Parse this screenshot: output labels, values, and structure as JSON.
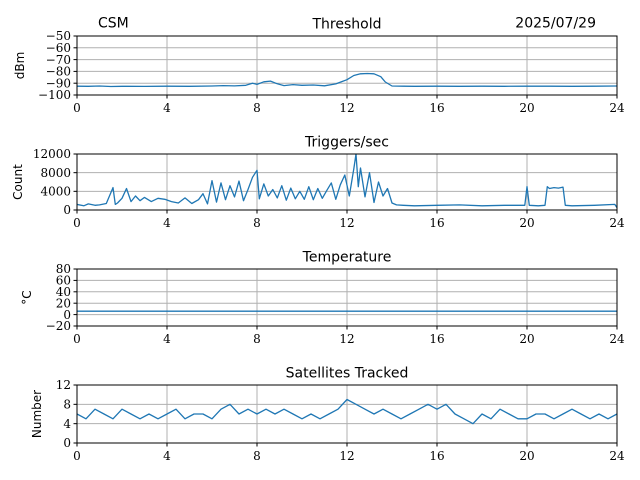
{
  "header": {
    "left": "CSM",
    "date": "2025/07/29"
  },
  "colors": {
    "series": "#1f77b4",
    "grid": "#b0b0b0",
    "axes": "#000000"
  },
  "chart_data": [
    {
      "type": "line",
      "title": "Threshold",
      "ylabel": "dBm",
      "xlim": [
        0,
        24
      ],
      "ylim": [
        -100,
        -50
      ],
      "xticks": [
        0,
        4,
        8,
        12,
        16,
        20,
        24
      ],
      "yticks": [
        -100,
        -90,
        -80,
        -70,
        -60,
        -50
      ],
      "grid": true,
      "series": [
        {
          "x": [
            0,
            0.5,
            1,
            1.5,
            2,
            3,
            4,
            5,
            6,
            6.5,
            7,
            7.5,
            7.8,
            8,
            8.3,
            8.6,
            8.9,
            9.2,
            9.6,
            10,
            10.5,
            11,
            11.5,
            11.8,
            12,
            12.3,
            12.6,
            12.9,
            13.2,
            13.5,
            13.7,
            14,
            14.5,
            15,
            16,
            17,
            18,
            19,
            20,
            21,
            22,
            23,
            24
          ],
          "y": [
            -92.5,
            -92.6,
            -92.4,
            -92.8,
            -92.6,
            -92.7,
            -92.5,
            -92.6,
            -92.4,
            -92.0,
            -92.3,
            -91.8,
            -90.0,
            -91.0,
            -88.8,
            -88.2,
            -90.5,
            -92.0,
            -91.2,
            -91.8,
            -91.5,
            -92.2,
            -90.6,
            -88.5,
            -87.0,
            -83.5,
            -82.0,
            -81.8,
            -82.0,
            -84.5,
            -89.0,
            -92.4,
            -92.5,
            -92.6,
            -92.5,
            -92.6,
            -92.5,
            -92.6,
            -92.5,
            -92.5,
            -92.6,
            -92.5,
            -92.4
          ]
        }
      ]
    },
    {
      "type": "line",
      "title": "Triggers/sec",
      "ylabel": "Count",
      "xlim": [
        0,
        24
      ],
      "ylim": [
        0,
        12000
      ],
      "xticks": [
        0,
        4,
        8,
        12,
        16,
        20,
        24
      ],
      "yticks": [
        0,
        4000,
        8000,
        12000
      ],
      "grid": true,
      "series": [
        {
          "x": [
            0,
            0.3,
            0.5,
            0.8,
            1.0,
            1.3,
            1.6,
            1.7,
            1.8,
            2.0,
            2.2,
            2.4,
            2.6,
            2.8,
            3.0,
            3.3,
            3.6,
            3.9,
            4.2,
            4.5,
            4.8,
            5.1,
            5.4,
            5.6,
            5.8,
            6.0,
            6.2,
            6.4,
            6.6,
            6.8,
            7.0,
            7.2,
            7.4,
            7.6,
            7.8,
            8.0,
            8.1,
            8.3,
            8.5,
            8.7,
            8.9,
            9.1,
            9.3,
            9.5,
            9.7,
            9.9,
            10.1,
            10.3,
            10.5,
            10.7,
            10.9,
            11.1,
            11.3,
            11.5,
            11.7,
            11.9,
            12.1,
            12.3,
            12.4,
            12.5,
            12.6,
            12.8,
            13.0,
            13.2,
            13.4,
            13.6,
            13.8,
            14.0,
            14.2,
            14.5,
            15,
            16,
            17,
            18,
            19,
            19.9,
            20.0,
            20.1,
            20.5,
            20.8,
            20.9,
            21.0,
            21.2,
            21.4,
            21.6,
            21.7,
            22,
            23,
            23.9,
            24
          ],
          "y": [
            1200,
            900,
            1300,
            1000,
            1100,
            1400,
            4800,
            1200,
            1500,
            2500,
            4600,
            1800,
            3000,
            2000,
            2700,
            1800,
            2500,
            2300,
            1800,
            1500,
            2600,
            1400,
            2200,
            3500,
            1300,
            6300,
            1700,
            5800,
            2200,
            5200,
            2800,
            6200,
            2000,
            4400,
            7000,
            8500,
            2400,
            5600,
            3000,
            4400,
            2600,
            5200,
            2100,
            4700,
            2400,
            4000,
            2300,
            5000,
            2200,
            4600,
            2500,
            4200,
            5800,
            2300,
            5400,
            7500,
            3000,
            8800,
            12000,
            5000,
            9000,
            2800,
            8000,
            1600,
            6000,
            3000,
            4600,
            1500,
            1100,
            1000,
            900,
            1000,
            1100,
            900,
            1000,
            1000,
            5000,
            1000,
            900,
            1000,
            5000,
            4600,
            4800,
            4700,
            4900,
            1000,
            900,
            1000,
            1200,
            500
          ]
        }
      ]
    },
    {
      "type": "line",
      "title": "Temperature",
      "ylabel": "°C",
      "xlim": [
        0,
        24
      ],
      "ylim": [
        -20,
        80
      ],
      "xticks": [
        0,
        4,
        8,
        12,
        16,
        20,
        24
      ],
      "yticks": [
        -20,
        0,
        20,
        40,
        60,
        80
      ],
      "grid": true,
      "series": [
        {
          "x": [
            0,
            24
          ],
          "y": [
            6,
            6
          ]
        }
      ]
    },
    {
      "type": "line",
      "title": "Satellites Tracked",
      "ylabel": "Number",
      "xlim": [
        0,
        24
      ],
      "ylim": [
        0,
        12
      ],
      "xticks": [
        0,
        4,
        8,
        12,
        16,
        20,
        24
      ],
      "yticks": [
        0,
        4,
        8,
        12
      ],
      "grid": true,
      "series": [
        {
          "x": [
            0,
            0.4,
            0.8,
            1.2,
            1.6,
            2.0,
            2.4,
            2.8,
            3.2,
            3.6,
            4.0,
            4.4,
            4.8,
            5.2,
            5.6,
            6.0,
            6.4,
            6.8,
            7.2,
            7.6,
            8.0,
            8.4,
            8.8,
            9.2,
            9.6,
            10.0,
            10.4,
            10.8,
            11.2,
            11.6,
            12.0,
            12.4,
            12.8,
            13.2,
            13.6,
            14.0,
            14.4,
            14.8,
            15.2,
            15.6,
            16.0,
            16.4,
            16.8,
            17.2,
            17.6,
            18.0,
            18.4,
            18.8,
            19.2,
            19.6,
            20.0,
            20.4,
            20.8,
            21.2,
            21.6,
            22.0,
            22.4,
            22.8,
            23.2,
            23.6,
            24.0
          ],
          "y": [
            6,
            5,
            7,
            6,
            5,
            7,
            6,
            5,
            6,
            5,
            6,
            7,
            5,
            6,
            6,
            5,
            7,
            8,
            6,
            7,
            6,
            7,
            6,
            7,
            6,
            5,
            6,
            5,
            6,
            7,
            9,
            8,
            7,
            6,
            7,
            6,
            5,
            6,
            7,
            8,
            7,
            8,
            6,
            5,
            4,
            6,
            5,
            7,
            6,
            5,
            5,
            6,
            6,
            5,
            6,
            7,
            6,
            5,
            6,
            5,
            6
          ]
        }
      ]
    }
  ]
}
